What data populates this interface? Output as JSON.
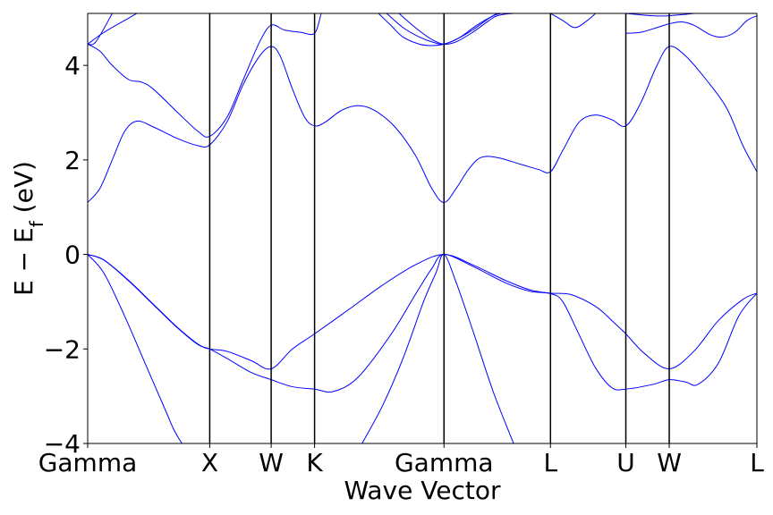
{
  "chart_data": {
    "type": "line",
    "xlabel": "Wave Vector",
    "ylabel": "E − E",
    "ylabel_sub": "f",
    "ylabel_unit": " (eV)",
    "ylim": [
      -4,
      5.1
    ],
    "xlim": [
      0,
      8.17
    ],
    "yticks": [
      {
        "value": 4,
        "label": "4"
      },
      {
        "value": 2,
        "label": "2"
      },
      {
        "value": 0,
        "label": "0"
      },
      {
        "value": -2,
        "label": "−2"
      },
      {
        "value": -4,
        "label": "−4"
      }
    ],
    "kpoints": [
      {
        "x": 0.0,
        "label": "Gamma"
      },
      {
        "x": 1.49,
        "label": "X"
      },
      {
        "x": 2.24,
        "label": "W"
      },
      {
        "x": 2.77,
        "label": "K"
      },
      {
        "x": 4.35,
        "label": "Gamma"
      },
      {
        "x": 5.65,
        "label": "L"
      },
      {
        "x": 6.57,
        "label": "U"
      },
      {
        "x": 7.1,
        "label": "W"
      },
      {
        "x": 8.17,
        "label": "L"
      }
    ],
    "line_color": "#0000ff",
    "vline_color": "#000000",
    "series": [
      {
        "values": [
          [
            0,
            0
          ],
          [
            0.2,
            -0.12
          ],
          [
            0.5,
            -0.55
          ],
          [
            0.8,
            -1.05
          ],
          [
            1.1,
            -1.55
          ],
          [
            1.35,
            -1.9
          ],
          [
            1.49,
            -2.0
          ],
          [
            1.7,
            -2.05
          ],
          [
            2.0,
            -2.25
          ],
          [
            2.24,
            -2.42
          ],
          [
            2.5,
            -2.0
          ],
          [
            2.77,
            -1.68
          ],
          [
            3.2,
            -1.15
          ],
          [
            3.6,
            -0.65
          ],
          [
            4.0,
            -0.22
          ],
          [
            4.35,
            0
          ],
          [
            4.7,
            -0.22
          ],
          [
            5.1,
            -0.55
          ],
          [
            5.4,
            -0.75
          ],
          [
            5.65,
            -0.82
          ],
          [
            5.9,
            -0.85
          ],
          [
            6.2,
            -1.1
          ],
          [
            6.4,
            -1.4
          ],
          [
            6.57,
            -1.68
          ],
          [
            6.8,
            -2.1
          ],
          [
            7.1,
            -2.42
          ],
          [
            7.4,
            -2.05
          ],
          [
            7.7,
            -1.4
          ],
          [
            8.0,
            -0.95
          ],
          [
            8.17,
            -0.82
          ]
        ]
      },
      {
        "values": [
          [
            0,
            0
          ],
          [
            0.2,
            -0.12
          ],
          [
            0.5,
            -0.56
          ],
          [
            0.8,
            -1.06
          ],
          [
            1.1,
            -1.56
          ],
          [
            1.35,
            -1.91
          ],
          [
            1.49,
            -2.0
          ],
          [
            1.7,
            -2.2
          ],
          [
            2.0,
            -2.5
          ],
          [
            2.24,
            -2.65
          ],
          [
            2.5,
            -2.8
          ],
          [
            2.77,
            -2.85
          ],
          [
            3.0,
            -2.9
          ],
          [
            3.3,
            -2.6
          ],
          [
            3.7,
            -1.7
          ],
          [
            4.0,
            -0.85
          ],
          [
            4.2,
            -0.3
          ],
          [
            4.35,
            0
          ],
          [
            4.7,
            -0.25
          ],
          [
            5.1,
            -0.6
          ],
          [
            5.4,
            -0.78
          ],
          [
            5.65,
            -0.83
          ],
          [
            5.8,
            -1.0
          ],
          [
            6.0,
            -1.7
          ],
          [
            6.2,
            -2.4
          ],
          [
            6.4,
            -2.82
          ],
          [
            6.57,
            -2.85
          ],
          [
            6.9,
            -2.75
          ],
          [
            7.1,
            -2.65
          ],
          [
            7.3,
            -2.7
          ],
          [
            7.45,
            -2.75
          ],
          [
            7.7,
            -2.3
          ],
          [
            7.95,
            -1.3
          ],
          [
            8.17,
            -0.82
          ]
        ]
      },
      {
        "values": [
          [
            0,
            0
          ],
          [
            0.2,
            -0.4
          ],
          [
            0.45,
            -1.3
          ],
          [
            0.7,
            -2.3
          ],
          [
            0.95,
            -3.3
          ],
          [
            1.05,
            -3.7
          ],
          [
            1.15,
            -4.0
          ]
        ]
      },
      {
        "values": [
          [
            3.35,
            -4.0
          ],
          [
            3.6,
            -3.2
          ],
          [
            3.85,
            -2.2
          ],
          [
            4.1,
            -1.0
          ],
          [
            4.25,
            -0.4
          ],
          [
            4.35,
            0
          ],
          [
            4.5,
            -0.6
          ],
          [
            4.7,
            -1.6
          ],
          [
            4.95,
            -2.9
          ],
          [
            5.2,
            -4.0
          ]
        ]
      },
      {
        "values": [
          [
            0,
            1.1
          ],
          [
            0.15,
            1.4
          ],
          [
            0.3,
            2.0
          ],
          [
            0.45,
            2.6
          ],
          [
            0.6,
            2.82
          ],
          [
            0.8,
            2.7
          ],
          [
            1.1,
            2.45
          ],
          [
            1.35,
            2.3
          ],
          [
            1.49,
            2.32
          ],
          [
            1.7,
            2.8
          ],
          [
            1.9,
            3.6
          ],
          [
            2.1,
            4.2
          ],
          [
            2.24,
            4.4
          ],
          [
            2.35,
            4.2
          ],
          [
            2.5,
            3.5
          ],
          [
            2.65,
            2.9
          ],
          [
            2.77,
            2.72
          ],
          [
            2.9,
            2.8
          ],
          [
            3.1,
            3.05
          ],
          [
            3.3,
            3.15
          ],
          [
            3.5,
            3.05
          ],
          [
            3.75,
            2.7
          ],
          [
            4.0,
            2.1
          ],
          [
            4.2,
            1.4
          ],
          [
            4.35,
            1.1
          ],
          [
            4.5,
            1.4
          ],
          [
            4.65,
            1.8
          ],
          [
            4.8,
            2.05
          ],
          [
            5.0,
            2.05
          ],
          [
            5.3,
            1.9
          ],
          [
            5.5,
            1.8
          ],
          [
            5.65,
            1.75
          ],
          [
            5.8,
            2.2
          ],
          [
            6.0,
            2.8
          ],
          [
            6.2,
            2.95
          ],
          [
            6.4,
            2.85
          ],
          [
            6.57,
            2.72
          ],
          [
            6.75,
            3.2
          ],
          [
            6.95,
            4.0
          ],
          [
            7.1,
            4.4
          ],
          [
            7.3,
            4.2
          ],
          [
            7.55,
            3.7
          ],
          [
            7.8,
            3.1
          ],
          [
            8.0,
            2.3
          ],
          [
            8.17,
            1.75
          ]
        ]
      },
      {
        "values": [
          [
            0,
            4.45
          ],
          [
            0.15,
            4.3
          ],
          [
            0.3,
            4.0
          ],
          [
            0.5,
            3.7
          ],
          [
            0.65,
            3.65
          ],
          [
            0.8,
            3.5
          ],
          [
            1.1,
            3.0
          ],
          [
            1.35,
            2.6
          ],
          [
            1.49,
            2.5
          ],
          [
            1.7,
            2.9
          ],
          [
            1.9,
            3.7
          ],
          [
            2.1,
            4.5
          ],
          [
            2.24,
            4.85
          ],
          [
            2.4,
            4.75
          ],
          [
            2.6,
            4.7
          ],
          [
            2.77,
            4.68
          ],
          [
            2.85,
            5.1
          ]
        ]
      },
      {
        "values": [
          [
            0,
            4.45
          ],
          [
            0.1,
            4.5
          ],
          [
            0.3,
            5.1
          ]
        ]
      },
      {
        "values": [
          [
            0,
            4.45
          ],
          [
            0.2,
            4.7
          ],
          [
            0.5,
            5.0
          ],
          [
            0.6,
            5.1
          ]
        ]
      },
      {
        "values": [
          [
            3.55,
            5.1
          ],
          [
            3.7,
            4.85
          ],
          [
            3.85,
            4.6
          ],
          [
            4.05,
            4.45
          ],
          [
            4.2,
            4.42
          ],
          [
            4.35,
            4.45
          ],
          [
            4.5,
            4.55
          ],
          [
            4.7,
            4.75
          ],
          [
            4.9,
            5.0
          ],
          [
            5.0,
            5.1
          ]
        ]
      },
      {
        "values": [
          [
            3.65,
            5.1
          ],
          [
            3.85,
            4.8
          ],
          [
            4.05,
            4.6
          ],
          [
            4.2,
            4.5
          ],
          [
            4.35,
            4.45
          ],
          [
            4.55,
            4.6
          ],
          [
            4.75,
            4.85
          ],
          [
            4.95,
            5.05
          ],
          [
            5.05,
            5.1
          ]
        ]
      },
      {
        "values": [
          [
            3.8,
            5.1
          ],
          [
            4.0,
            4.8
          ],
          [
            4.2,
            4.55
          ],
          [
            4.35,
            4.45
          ],
          [
            4.5,
            4.5
          ],
          [
            4.7,
            4.7
          ],
          [
            4.9,
            4.95
          ],
          [
            5.0,
            5.05
          ],
          [
            5.2,
            5.1
          ],
          [
            5.65,
            5.1
          ]
        ]
      },
      {
        "values": [
          [
            5.65,
            5.1
          ],
          [
            5.8,
            4.95
          ],
          [
            5.95,
            4.8
          ],
          [
            6.1,
            4.95
          ],
          [
            6.2,
            5.1
          ]
        ]
      },
      {
        "values": [
          [
            6.57,
            4.68
          ],
          [
            6.75,
            4.7
          ],
          [
            6.95,
            4.8
          ],
          [
            7.1,
            4.88
          ],
          [
            7.25,
            4.92
          ],
          [
            7.4,
            4.85
          ],
          [
            7.6,
            4.65
          ],
          [
            7.75,
            4.6
          ],
          [
            7.9,
            4.7
          ],
          [
            8.05,
            4.95
          ],
          [
            8.17,
            5.05
          ]
        ]
      },
      {
        "values": [
          [
            6.57,
            5.1
          ],
          [
            6.9,
            5.05
          ],
          [
            7.1,
            5.05
          ],
          [
            7.4,
            5.1
          ]
        ]
      }
    ]
  }
}
